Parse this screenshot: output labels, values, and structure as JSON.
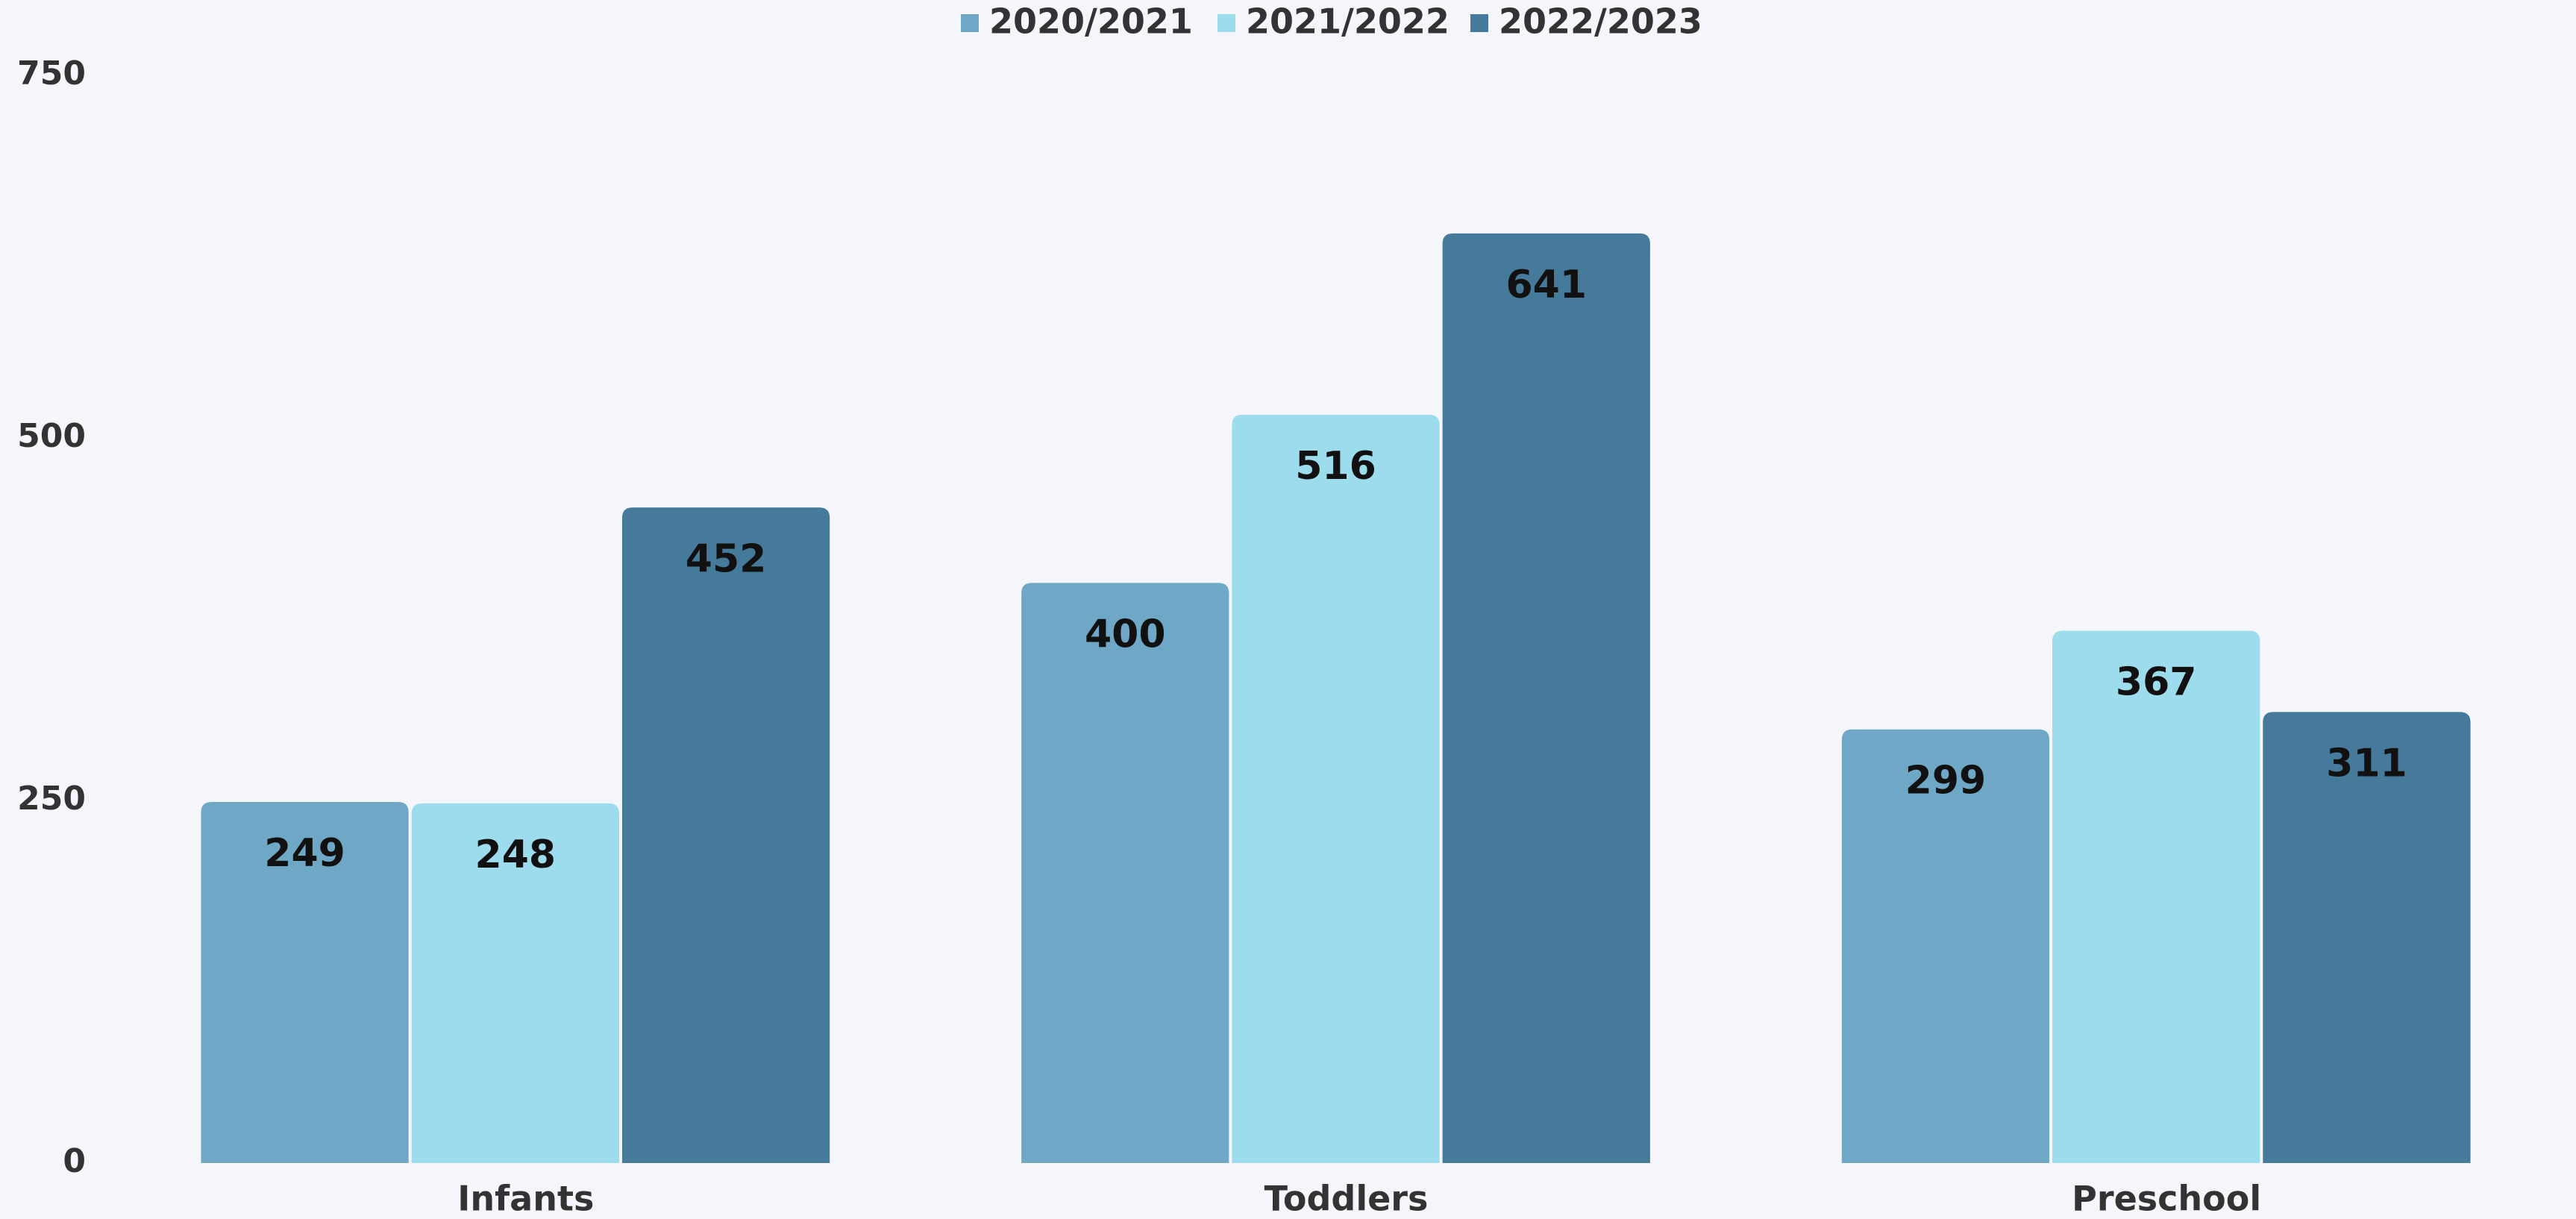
{
  "chart_data": {
    "type": "bar",
    "categories": [
      "Infants",
      "Toddlers",
      "Preschool"
    ],
    "series": [
      {
        "name": "2020/2021",
        "color": "#6fa8c6",
        "values": [
          249,
          400,
          299
        ]
      },
      {
        "name": "2021/2022",
        "color": "#9cdcec",
        "values": [
          248,
          516,
          367
        ]
      },
      {
        "name": "2022/2023",
        "color": "#467a9a",
        "values": [
          452,
          641,
          311
        ]
      }
    ],
    "ylim": [
      0,
      750
    ],
    "yticks": [
      0,
      250,
      500,
      750
    ],
    "grid": false,
    "legend": "top"
  }
}
